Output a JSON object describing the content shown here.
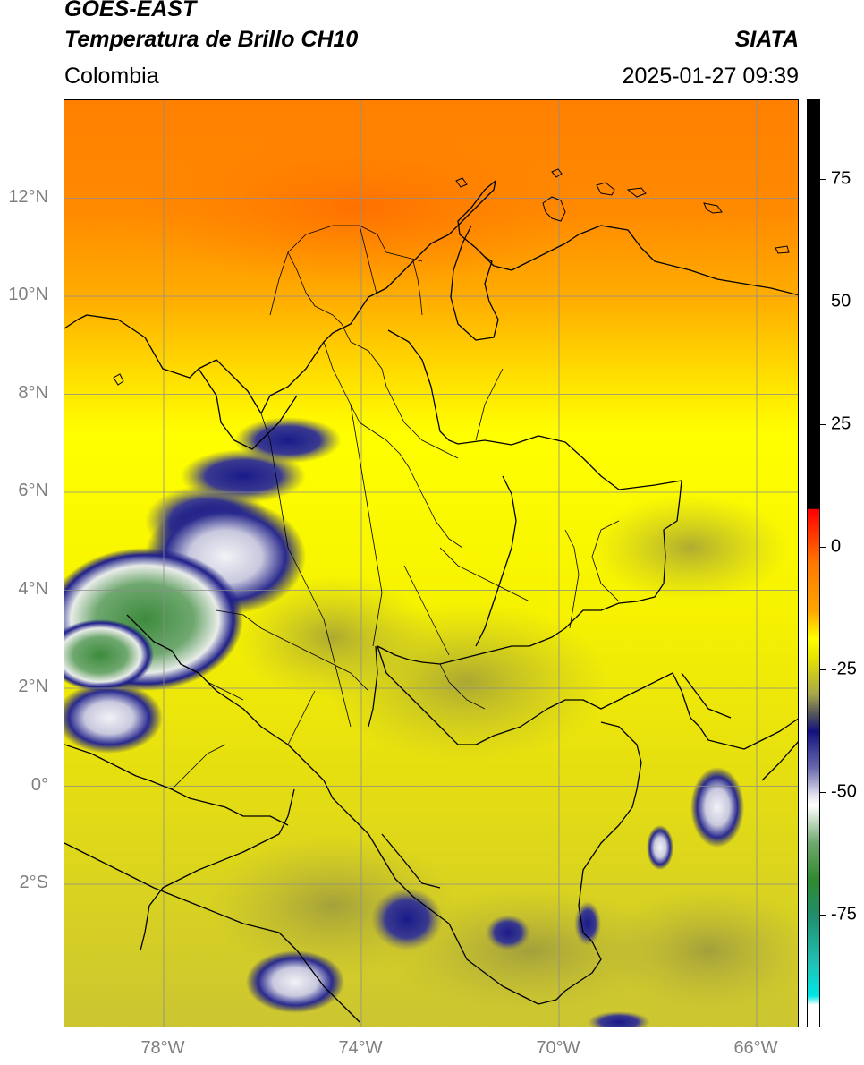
{
  "header": {
    "satellite": "GOES-EAST",
    "product": "Temperatura de Brillo CH10",
    "region": "Colombia",
    "source": "SIATA",
    "datetime": "2025-01-27 09:39"
  },
  "map": {
    "lat_ticks": [
      {
        "value": 12,
        "label": "12°N"
      },
      {
        "value": 10,
        "label": "10°N"
      },
      {
        "value": 8,
        "label": "8°N"
      },
      {
        "value": 6,
        "label": "6°N"
      },
      {
        "value": 4,
        "label": "4°N"
      },
      {
        "value": 2,
        "label": "2°N"
      },
      {
        "value": 0,
        "label": "0°"
      },
      {
        "value": -2,
        "label": "2°S"
      }
    ],
    "lon_ticks": [
      {
        "value": -78,
        "label": "78°W"
      },
      {
        "value": -74,
        "label": "74°W"
      },
      {
        "value": -70,
        "label": "70°W"
      },
      {
        "value": -66,
        "label": "66°W"
      }
    ],
    "colors": {
      "warm_orange": "#ff7a00",
      "orange": "#ffa500",
      "yellow": "#ffff00",
      "olive": "#c9c433",
      "dark_olive": "#8e8c45",
      "navy": "#12127e",
      "white_cloud": "#f2f2f6",
      "green": "#3d8b3d",
      "border": "#000000",
      "grid": "#8c8c8c"
    }
  },
  "colorbar": {
    "ticks": [
      {
        "value": 75,
        "label": "75"
      },
      {
        "value": 50,
        "label": "50"
      },
      {
        "value": 25,
        "label": "25"
      },
      {
        "value": 0,
        "label": "0"
      },
      {
        "value": -25,
        "label": "-25"
      },
      {
        "value": -50,
        "label": "-50"
      },
      {
        "value": -75,
        "label": "-75"
      }
    ]
  }
}
